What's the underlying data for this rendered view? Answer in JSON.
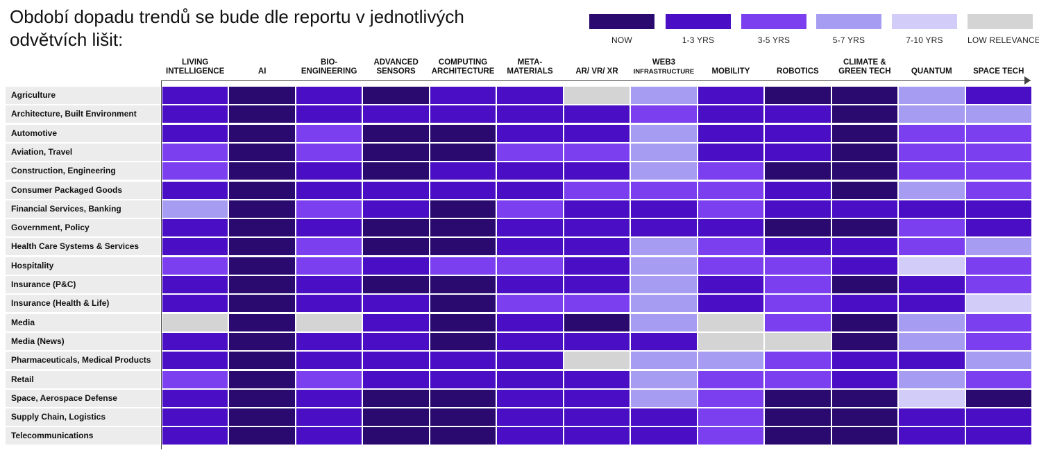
{
  "title": "Období dopadu trendů se bude dle reportu v jednotlivých odvětvích lišit:",
  "legend": [
    {
      "label": "NOW",
      "color": "#2a0a6e"
    },
    {
      "label": "1-3 YRS",
      "color": "#4a0fc4"
    },
    {
      "label": "3-5 YRS",
      "color": "#7b3ff0"
    },
    {
      "label": "5-7 YRS",
      "color": "#a69cf2"
    },
    {
      "label": "7-10 YRS",
      "color": "#d2ccf8"
    },
    {
      "label": "LOW RELEVANCE",
      "color": "#d4d4d4"
    }
  ],
  "chart_data": {
    "type": "heatmap",
    "title": "Období dopadu trendů se bude dle reportu v jednotlivých odvětvích lišit:",
    "columns": [
      {
        "line1": "LIVING",
        "line2": "INTELLIGENCE"
      },
      {
        "line1": "",
        "line2": "AI"
      },
      {
        "line1": "BIO-",
        "line2": "ENGINEERING"
      },
      {
        "line1": "ADVANCED",
        "line2": "SENSORS"
      },
      {
        "line1": "COMPUTING",
        "line2": "ARCHITECTURE"
      },
      {
        "line1": "META-",
        "line2": "MATERIALS"
      },
      {
        "line1": "",
        "line2": "AR/ VR/ XR"
      },
      {
        "line1": "WEB3",
        "line2": "INFRASTRUCTURE"
      },
      {
        "line1": "",
        "line2": "MOBILITY"
      },
      {
        "line1": "",
        "line2": "ROBOTICS"
      },
      {
        "line1": "CLIMATE &",
        "line2": "GREEN TECH"
      },
      {
        "line1": "",
        "line2": "QUANTUM"
      },
      {
        "line1": "",
        "line2": "SPACE TECH"
      }
    ],
    "rows": [
      "Agriculture",
      "Architecture, Built Environment",
      "Automotive",
      "Aviation, Travel",
      "Construction, Engineering",
      "Consumer Packaged Goods",
      "Financial Services, Banking",
      "Government, Policy",
      "Health Care Systems & Services",
      "Hospitality",
      "Insurance (P&C)",
      "Insurance (Health & Life)",
      "Media",
      "Media (News)",
      "Pharmaceuticals, Medical Products",
      "Retail",
      "Space, Aerospace Defense",
      "Supply Chain, Logistics",
      "Telecommunications"
    ],
    "categories": [
      "NOW",
      "1-3 YRS",
      "3-5 YRS",
      "5-7 YRS",
      "7-10 YRS",
      "LOW RELEVANCE"
    ],
    "values": [
      [
        1,
        0,
        1,
        0,
        1,
        1,
        5,
        3,
        1,
        0,
        0,
        3,
        1
      ],
      [
        1,
        0,
        1,
        1,
        1,
        1,
        1,
        2,
        1,
        1,
        0,
        3,
        3
      ],
      [
        1,
        0,
        2,
        0,
        0,
        1,
        1,
        3,
        1,
        1,
        0,
        2,
        2
      ],
      [
        2,
        0,
        2,
        0,
        0,
        2,
        2,
        3,
        1,
        1,
        0,
        2,
        2
      ],
      [
        2,
        0,
        1,
        0,
        1,
        1,
        1,
        3,
        2,
        0,
        0,
        2,
        2
      ],
      [
        1,
        0,
        1,
        1,
        1,
        1,
        2,
        2,
        2,
        1,
        0,
        3,
        2
      ],
      [
        3,
        0,
        2,
        1,
        0,
        2,
        1,
        1,
        2,
        1,
        1,
        1,
        1
      ],
      [
        1,
        0,
        1,
        0,
        0,
        1,
        1,
        1,
        1,
        0,
        0,
        2,
        1
      ],
      [
        1,
        0,
        2,
        0,
        0,
        1,
        1,
        3,
        2,
        1,
        1,
        2,
        3
      ],
      [
        2,
        0,
        2,
        1,
        2,
        2,
        1,
        3,
        2,
        2,
        1,
        4,
        2
      ],
      [
        1,
        0,
        1,
        0,
        0,
        1,
        1,
        3,
        1,
        2,
        0,
        1,
        2
      ],
      [
        1,
        0,
        1,
        1,
        0,
        2,
        2,
        3,
        1,
        2,
        1,
        1,
        4
      ],
      [
        5,
        0,
        5,
        1,
        0,
        1,
        0,
        3,
        5,
        2,
        0,
        3,
        2
      ],
      [
        1,
        0,
        1,
        1,
        0,
        1,
        1,
        1,
        5,
        5,
        0,
        3,
        2
      ],
      [
        1,
        0,
        1,
        1,
        1,
        1,
        5,
        3,
        3,
        2,
        1,
        1,
        3
      ],
      [
        2,
        0,
        2,
        1,
        1,
        1,
        1,
        3,
        2,
        2,
        1,
        3,
        2
      ],
      [
        1,
        0,
        1,
        0,
        0,
        1,
        1,
        3,
        2,
        0,
        0,
        4,
        0
      ],
      [
        1,
        0,
        1,
        0,
        0,
        1,
        1,
        1,
        2,
        0,
        0,
        1,
        1
      ],
      [
        1,
        0,
        1,
        0,
        0,
        1,
        1,
        1,
        2,
        0,
        0,
        1,
        1
      ]
    ]
  }
}
